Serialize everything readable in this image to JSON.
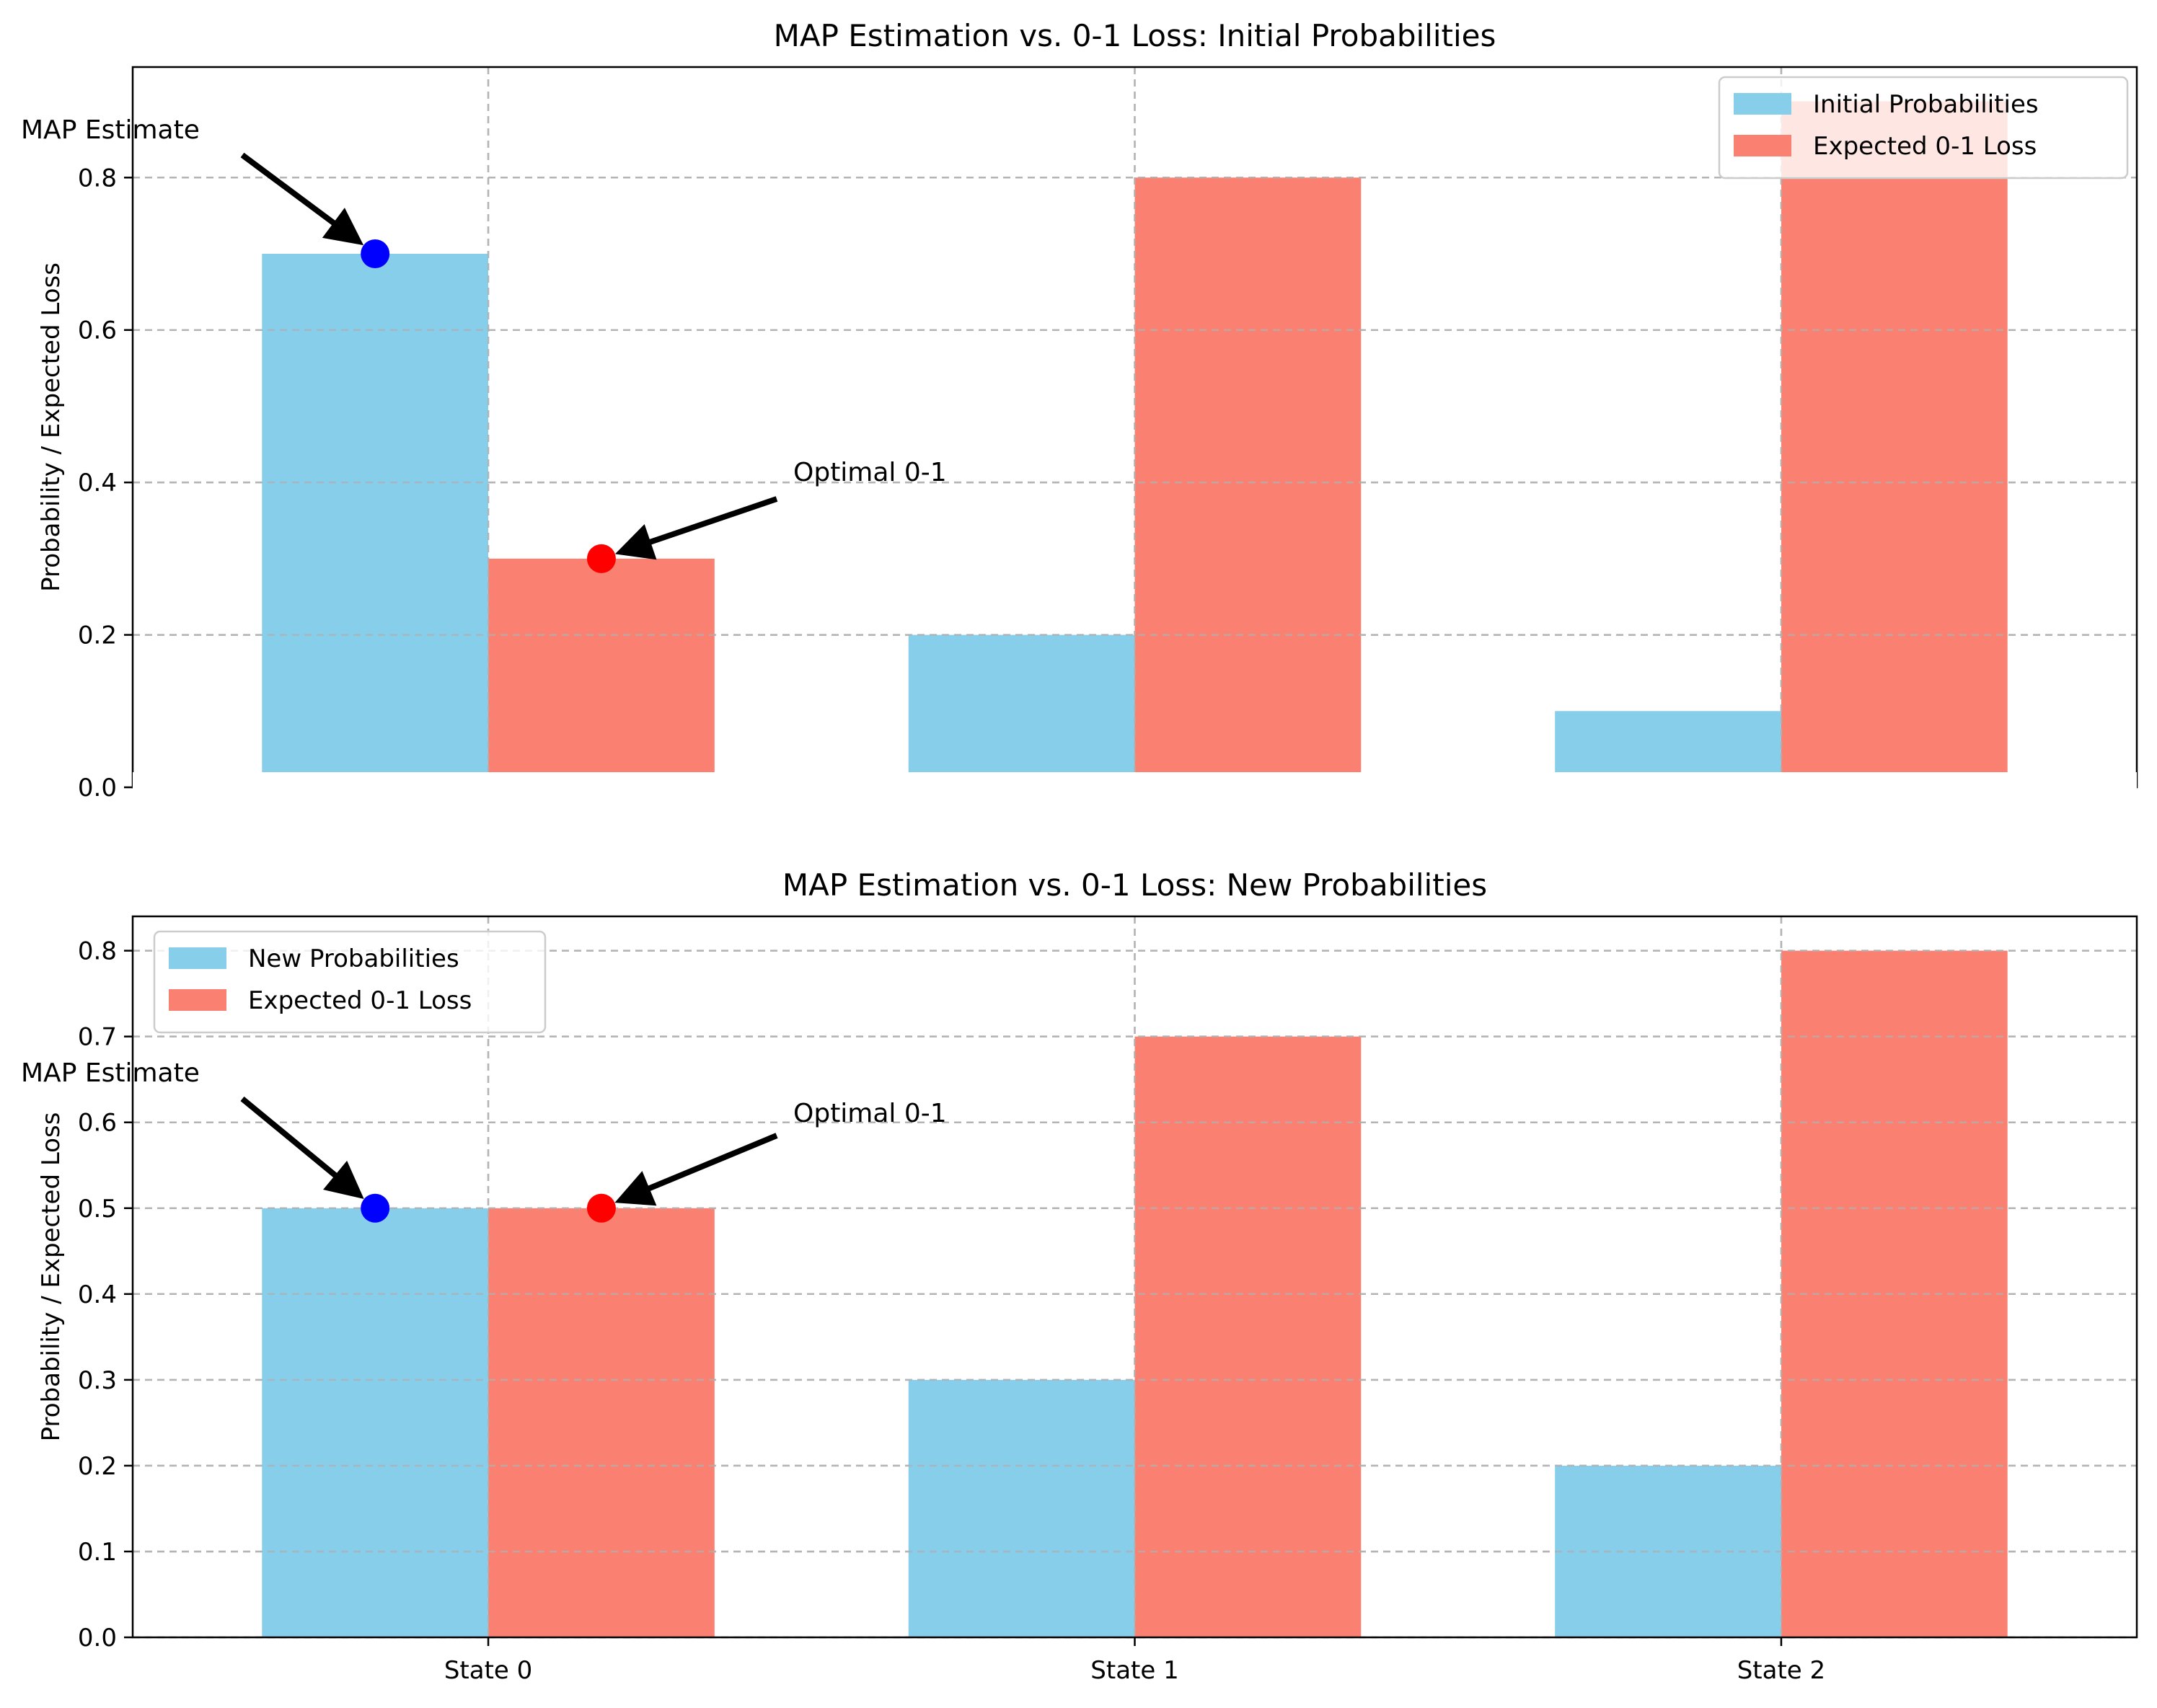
{
  "chart_data": [
    {
      "type": "bar",
      "title": "MAP Estimation vs. 0-1 Loss: Initial Probabilities",
      "xlabel": "",
      "ylabel": "Probability / Expected Loss",
      "categories": [
        "State 0",
        "State 1",
        "State 2"
      ],
      "ylim": [
        0,
        0.945
      ],
      "yticks": [
        "0.0",
        "0.2",
        "0.4",
        "0.6",
        "0.8"
      ],
      "ytick_values": [
        0,
        0.2,
        0.4,
        0.6,
        0.8
      ],
      "grid": true,
      "legend_position": "top-right",
      "series": [
        {
          "name": "Initial Probabilities",
          "color": "#87ceeb",
          "values": [
            0.7,
            0.2,
            0.1
          ]
        },
        {
          "name": "Expected 0-1 Loss",
          "color": "#fa8072",
          "values": [
            0.3,
            0.8,
            0.9
          ]
        }
      ],
      "annotations": [
        {
          "text": "MAP Estimate",
          "category_index": 0,
          "series_index": 0,
          "value": 0.7,
          "marker_color": "#0000ff"
        },
        {
          "text": "Optimal 0-1",
          "category_index": 0,
          "series_index": 1,
          "value": 0.3,
          "marker_color": "#ff0000"
        }
      ]
    },
    {
      "type": "bar",
      "title": "MAP Estimation vs. 0-1 Loss: New Probabilities",
      "xlabel": "",
      "ylabel": "Probability / Expected Loss",
      "categories": [
        "State 0",
        "State 1",
        "State 2"
      ],
      "ylim": [
        0,
        0.84
      ],
      "yticks": [
        "0.0",
        "0.1",
        "0.2",
        "0.3",
        "0.4",
        "0.5",
        "0.6",
        "0.7",
        "0.8"
      ],
      "ytick_values": [
        0,
        0.1,
        0.2,
        0.3,
        0.4,
        0.5,
        0.6,
        0.7,
        0.8
      ],
      "grid": true,
      "legend_position": "top-left",
      "series": [
        {
          "name": "New Probabilities",
          "color": "#87ceeb",
          "values": [
            0.5,
            0.3,
            0.2
          ]
        },
        {
          "name": "Expected 0-1 Loss",
          "color": "#fa8072",
          "values": [
            0.5,
            0.7,
            0.8
          ]
        }
      ],
      "annotations": [
        {
          "text": "MAP Estimate",
          "category_index": 0,
          "series_index": 0,
          "value": 0.5,
          "marker_color": "#0000ff"
        },
        {
          "text": "Optimal 0-1",
          "category_index": 0,
          "series_index": 1,
          "value": 0.5,
          "marker_color": "#ff0000"
        }
      ]
    }
  ]
}
